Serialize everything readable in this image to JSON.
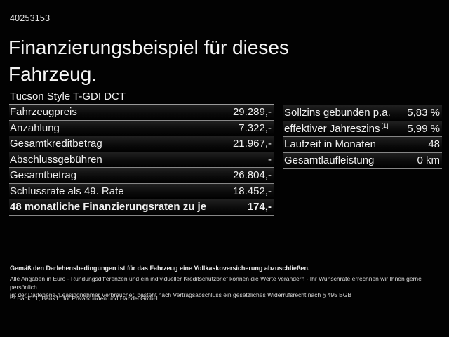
{
  "page": {
    "id_number": "40253153",
    "title_line1": "Finanzierungsbeispiel für dieses",
    "title_line2": "Fahrzeug.",
    "subtitle": "Tucson Style T-GDI DCT"
  },
  "left_table": {
    "rows": [
      {
        "label": "Fahrzeugpreis",
        "value": "29.289,-"
      },
      {
        "label": "Anzahlung",
        "value": "7.322,-"
      },
      {
        "label": "Gesamtkreditbetrag",
        "value": "21.967,-"
      },
      {
        "label": "Abschlussgebühren",
        "value": "-"
      },
      {
        "label": "Gesamtbetrag",
        "value": "26.804,-"
      },
      {
        "label": "Schlussrate als 49. Rate",
        "value": "18.452,-"
      },
      {
        "label": "48 monatliche Finanzierungsraten zu je",
        "value": "174,-"
      }
    ]
  },
  "right_table": {
    "rows": [
      {
        "label": "Sollzins gebunden p.a.",
        "sup": "",
        "value": "5,83 %"
      },
      {
        "label": "effektiver Jahreszins",
        "sup": "[1]",
        "value": "5,99 %"
      },
      {
        "label": "Laufzeit in Monaten",
        "sup": "",
        "value": "48"
      },
      {
        "label": "Gesamtlaufleistung",
        "sup": "",
        "value": "0 km"
      }
    ]
  },
  "disclaimer": {
    "bold_line": "Gemäß den Darlehensbedingungen ist für das Fahrzeug eine Vollkaskoversicherung abzuschließen.",
    "line2": "Alle Angaben in Euro - Rundungsdifferenzen und ein individueller Kreditschutzbrief können die Werte verändern - Ihr Wunschrate errechnen wir Ihnen gerne persönlich",
    "line3": "Ist der Darlehens-/Leasingnehmer Verbraucher, besteht nach Vertragsabschluss ein gesetzliches Widerrufsrecht nach § 495 BGB",
    "footnote_marker": "[1]",
    "footnote_text": "Bank 11, Bank11 für Privatkunden und Handel GmbH."
  },
  "colors": {
    "background": "#000000",
    "text": "#f0f0f0",
    "separator": "#8a8a8a",
    "row_gradient_top": "#202020"
  }
}
